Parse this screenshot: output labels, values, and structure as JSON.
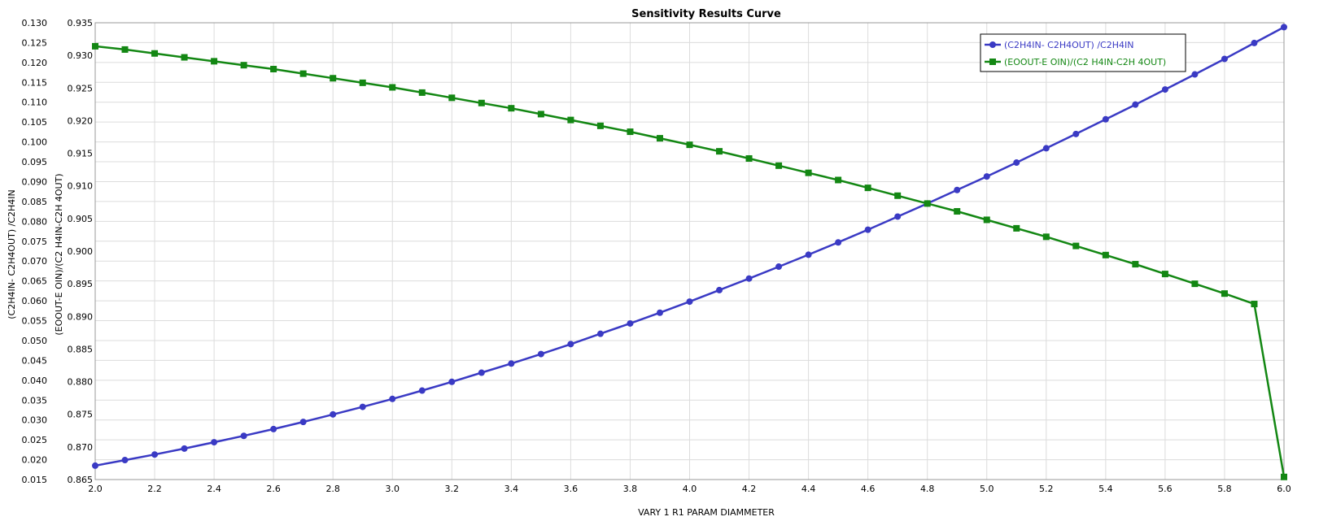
{
  "chart_data": {
    "type": "line",
    "title": "Sensitivity Results Curve",
    "xlabel": "VARY   1 R1 PARAM DIAMMETER",
    "xlim": [
      2.0,
      6.0
    ],
    "x_ticks": [
      "2.0",
      "2.2",
      "2.4",
      "2.6",
      "2.8",
      "3.0",
      "3.2",
      "3.4",
      "3.6",
      "3.8",
      "4.0",
      "4.2",
      "4.4",
      "4.6",
      "4.8",
      "5.0",
      "5.2",
      "5.4",
      "5.6",
      "5.8",
      "6.0"
    ],
    "y1label": "(C2H4IN- C2H4OUT) /C2H4IN",
    "y1lim": [
      0.015,
      0.13
    ],
    "y1_ticks": [
      "0.015",
      "0.020",
      "0.025",
      "0.030",
      "0.035",
      "0.040",
      "0.045",
      "0.050",
      "0.055",
      "0.060",
      "0.065",
      "0.070",
      "0.075",
      "0.080",
      "0.085",
      "0.090",
      "0.095",
      "0.100",
      "0.105",
      "0.110",
      "0.115",
      "0.120",
      "0.125",
      "0.130"
    ],
    "y2label": "(EOOUT-E OIN)/(C2 H4IN-C2H 4OUT)",
    "y2lim": [
      0.865,
      0.935
    ],
    "y2_ticks": [
      "0.865",
      "0.870",
      "0.875",
      "0.880",
      "0.885",
      "0.890",
      "0.895",
      "0.900",
      "0.905",
      "0.910",
      "0.915",
      "0.920",
      "0.925",
      "0.930",
      "0.935"
    ],
    "grid": true,
    "legend_position": "top-right",
    "x": [
      2.0,
      2.1,
      2.2,
      2.3,
      2.4,
      2.5,
      2.6,
      2.7,
      2.8,
      2.9,
      3.0,
      3.1,
      3.2,
      3.3,
      3.4,
      3.5,
      3.6,
      3.7,
      3.8,
      3.9,
      4.0,
      4.1,
      4.2,
      4.3,
      4.4,
      4.5,
      4.6,
      4.7,
      4.8,
      4.9,
      5.0,
      5.1,
      5.2,
      5.3,
      5.4,
      5.5,
      5.6,
      5.7,
      5.8,
      5.9,
      6.0
    ],
    "series": [
      {
        "name": "(C2H4IN- C2H4OUT) /C2H4IN",
        "axis": "left",
        "color": "#3a3ac4",
        "marker": "circle",
        "values": [
          0.0185,
          0.0199,
          0.0213,
          0.0228,
          0.0244,
          0.026,
          0.0277,
          0.0295,
          0.0314,
          0.0333,
          0.0353,
          0.0374,
          0.0396,
          0.0419,
          0.0442,
          0.0466,
          0.0491,
          0.0517,
          0.0543,
          0.057,
          0.0598,
          0.0627,
          0.0656,
          0.0686,
          0.0716,
          0.0747,
          0.0779,
          0.0812,
          0.0845,
          0.0879,
          0.0913,
          0.0948,
          0.0984,
          0.102,
          0.1057,
          0.1094,
          0.1132,
          0.117,
          0.1209,
          0.1249,
          0.1289
        ]
      },
      {
        "name": "(EOOUT-E OIN)/(C2 H4IN-C2H 4OUT)",
        "axis": "right",
        "color": "#138713",
        "marker": "square",
        "values": [
          0.9314,
          0.9309,
          0.9303,
          0.9297,
          0.9291,
          0.9285,
          0.9279,
          0.9272,
          0.9265,
          0.9258,
          0.9251,
          0.9243,
          0.9235,
          0.9227,
          0.9219,
          0.921,
          0.9201,
          0.9192,
          0.9183,
          0.9173,
          0.9163,
          0.9153,
          0.9142,
          0.9131,
          0.912,
          0.9109,
          0.9097,
          0.9085,
          0.9073,
          0.9061,
          0.9048,
          0.9035,
          0.9022,
          0.9008,
          0.8994,
          0.898,
          0.8965,
          0.895,
          0.8935,
          0.8919,
          0.8654
        ]
      }
    ]
  }
}
